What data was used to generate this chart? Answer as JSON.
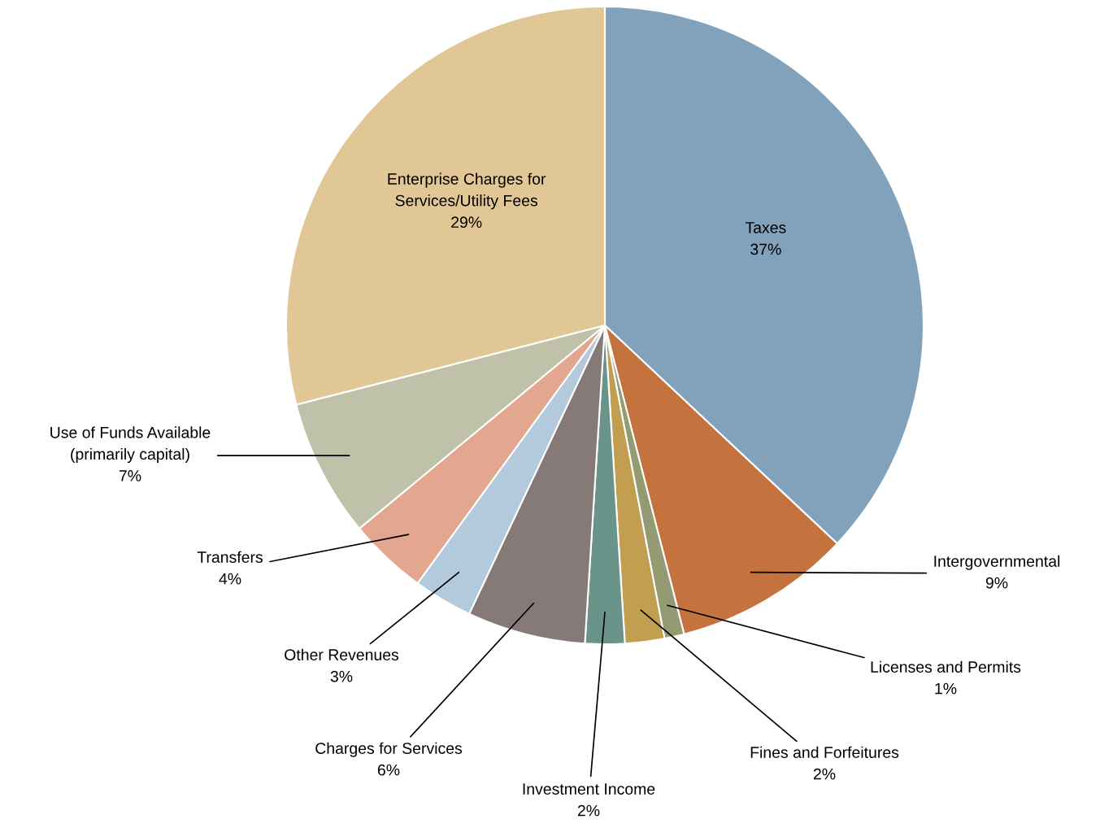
{
  "chart_data": {
    "type": "pie",
    "categories": [
      "Taxes",
      "Intergovernmental",
      "Licenses and Permits",
      "Fines and Forfeitures",
      "Investment Income",
      "Charges for Services",
      "Other Revenues",
      "Transfers",
      "Use of Funds Available\n(primarily capital)",
      "Enterprise Charges for\nServices/Utility Fees"
    ],
    "values": [
      37,
      9,
      1,
      2,
      2,
      6,
      3,
      4,
      7,
      29
    ],
    "value_labels": [
      "37%",
      "9%",
      "1%",
      "2%",
      "2%",
      "6%",
      "3%",
      "4%",
      "7%",
      "29%"
    ],
    "colors": [
      "#82a2bc",
      "#c4723e",
      "#949b73",
      "#c29e50",
      "#6a948a",
      "#857a77",
      "#b3c9dc",
      "#e3a78f",
      "#bfc2a8",
      "#e1c696"
    ],
    "legend": false
  }
}
